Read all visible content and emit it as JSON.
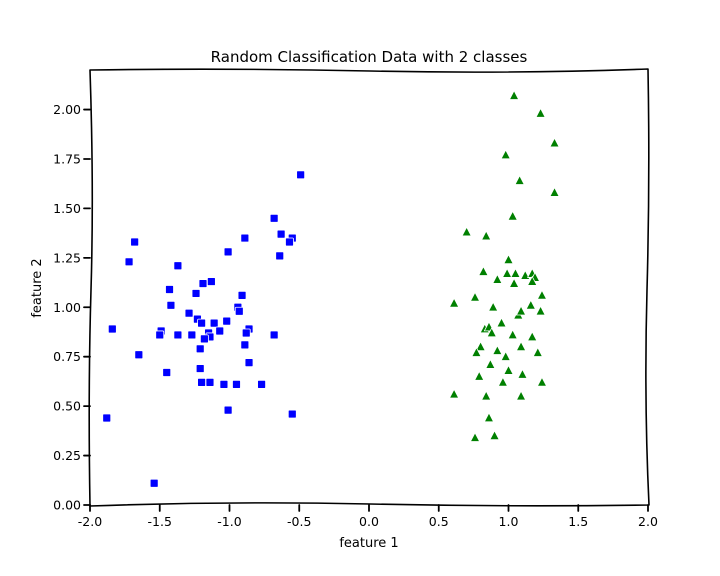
{
  "chart_data": {
    "type": "scatter",
    "title": "Random Classification Data with 2 classes",
    "xlabel": "feature 1",
    "ylabel": "feature 2",
    "xlim": [
      -2.0,
      2.0
    ],
    "ylim": [
      0.0,
      2.2
    ],
    "xticks": [
      "-2.0",
      "-1.5",
      "-1.0",
      "-0.5",
      "0.0",
      "0.5",
      "1.0",
      "1.5",
      "2.0"
    ],
    "yticks": [
      "0.00",
      "0.25",
      "0.50",
      "0.75",
      "1.00",
      "1.25",
      "1.50",
      "1.75",
      "2.00"
    ],
    "xtick_values": [
      -2.0,
      -1.5,
      -1.0,
      -0.5,
      0.0,
      0.5,
      1.0,
      1.5,
      2.0
    ],
    "ytick_values": [
      0.0,
      0.25,
      0.5,
      0.75,
      1.0,
      1.25,
      1.5,
      1.75,
      2.0
    ],
    "grid": false,
    "series": [
      {
        "marker": "square",
        "color": "#0000ff",
        "points": [
          [
            -0.49,
            1.67
          ],
          [
            -0.68,
            1.45
          ],
          [
            -0.55,
            1.35
          ],
          [
            -0.63,
            1.37
          ],
          [
            -0.57,
            1.33
          ],
          [
            -0.64,
            1.26
          ],
          [
            -0.89,
            1.35
          ],
          [
            -1.01,
            1.28
          ],
          [
            -1.68,
            1.33
          ],
          [
            -1.72,
            1.23
          ],
          [
            -1.37,
            1.21
          ],
          [
            -1.43,
            1.09
          ],
          [
            -1.13,
            1.13
          ],
          [
            -1.19,
            1.12
          ],
          [
            -1.24,
            1.07
          ],
          [
            -0.91,
            1.06
          ],
          [
            -1.42,
            1.01
          ],
          [
            -0.94,
            1.0
          ],
          [
            -0.93,
            0.98
          ],
          [
            -1.29,
            0.97
          ],
          [
            -1.23,
            0.94
          ],
          [
            -1.2,
            0.92
          ],
          [
            -1.02,
            0.93
          ],
          [
            -1.11,
            0.92
          ],
          [
            -1.07,
            0.88
          ],
          [
            -1.15,
            0.87
          ],
          [
            -1.14,
            0.85
          ],
          [
            -0.86,
            0.89
          ],
          [
            -0.88,
            0.87
          ],
          [
            -1.49,
            0.88
          ],
          [
            -1.5,
            0.86
          ],
          [
            -1.37,
            0.86
          ],
          [
            -1.27,
            0.86
          ],
          [
            -1.18,
            0.84
          ],
          [
            -0.68,
            0.86
          ],
          [
            -1.84,
            0.89
          ],
          [
            -0.89,
            0.81
          ],
          [
            -1.21,
            0.79
          ],
          [
            -1.65,
            0.76
          ],
          [
            -0.86,
            0.72
          ],
          [
            -1.21,
            0.69
          ],
          [
            -1.45,
            0.67
          ],
          [
            -1.2,
            0.62
          ],
          [
            -1.14,
            0.62
          ],
          [
            -1.04,
            0.61
          ],
          [
            -0.95,
            0.61
          ],
          [
            -0.77,
            0.61
          ],
          [
            -1.01,
            0.48
          ],
          [
            -0.55,
            0.46
          ],
          [
            -1.88,
            0.44
          ],
          [
            -1.54,
            0.11
          ]
        ]
      },
      {
        "marker": "triangle",
        "color": "#008000",
        "points": [
          [
            1.04,
            2.07
          ],
          [
            1.23,
            1.98
          ],
          [
            1.33,
            1.83
          ],
          [
            0.98,
            1.77
          ],
          [
            1.08,
            1.64
          ],
          [
            1.33,
            1.58
          ],
          [
            1.03,
            1.46
          ],
          [
            0.7,
            1.38
          ],
          [
            0.84,
            1.36
          ],
          [
            1.0,
            1.24
          ],
          [
            0.82,
            1.18
          ],
          [
            0.99,
            1.17
          ],
          [
            1.05,
            1.17
          ],
          [
            1.12,
            1.16
          ],
          [
            1.17,
            1.17
          ],
          [
            1.19,
            1.15
          ],
          [
            0.92,
            1.14
          ],
          [
            1.04,
            1.12
          ],
          [
            1.17,
            1.13
          ],
          [
            1.24,
            1.06
          ],
          [
            0.61,
            1.02
          ],
          [
            0.76,
            1.05
          ],
          [
            0.89,
            1.0
          ],
          [
            1.16,
            1.01
          ],
          [
            1.23,
            0.98
          ],
          [
            1.07,
            0.96
          ],
          [
            1.09,
            0.98
          ],
          [
            0.95,
            0.92
          ],
          [
            0.83,
            0.89
          ],
          [
            0.86,
            0.9
          ],
          [
            0.88,
            0.87
          ],
          [
            1.03,
            0.86
          ],
          [
            1.17,
            0.85
          ],
          [
            0.8,
            0.8
          ],
          [
            0.92,
            0.78
          ],
          [
            1.09,
            0.8
          ],
          [
            0.77,
            0.77
          ],
          [
            1.21,
            0.77
          ],
          [
            0.98,
            0.75
          ],
          [
            0.87,
            0.71
          ],
          [
            1.0,
            0.68
          ],
          [
            1.1,
            0.66
          ],
          [
            0.79,
            0.65
          ],
          [
            0.96,
            0.62
          ],
          [
            1.24,
            0.62
          ],
          [
            0.61,
            0.56
          ],
          [
            0.84,
            0.55
          ],
          [
            1.09,
            0.55
          ],
          [
            0.86,
            0.44
          ],
          [
            0.76,
            0.34
          ],
          [
            0.9,
            0.35
          ]
        ]
      }
    ]
  }
}
